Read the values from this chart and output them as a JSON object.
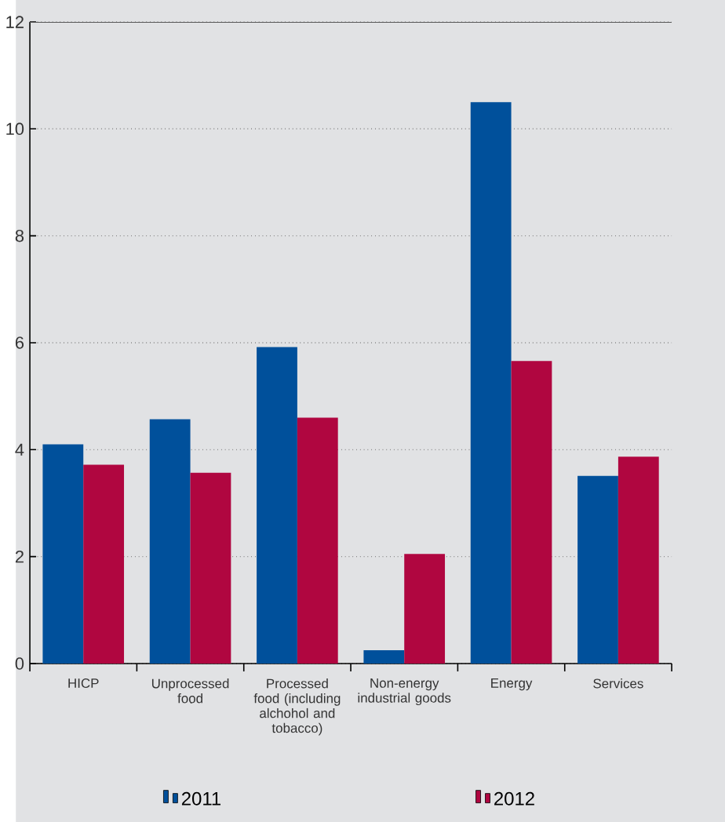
{
  "chart_data": {
    "type": "bar",
    "categories": [
      "HICP",
      "Unprocessed food",
      "Processed food (including alchohol and tobacco)",
      "Non-energy industrial goods",
      "Energy",
      "Services"
    ],
    "series": [
      {
        "name": "2011",
        "color": "#00509b",
        "values": [
          4.1,
          4.57,
          5.92,
          0.25,
          10.5,
          3.51
        ]
      },
      {
        "name": "2012",
        "color": "#b00640",
        "values": [
          3.72,
          3.57,
          4.6,
          2.05,
          5.66,
          3.87
        ]
      }
    ],
    "ylim": [
      0,
      12
    ],
    "yticks": [
      0,
      2,
      4,
      6,
      8,
      10,
      12
    ],
    "grid": "y",
    "legend": "bottom"
  }
}
